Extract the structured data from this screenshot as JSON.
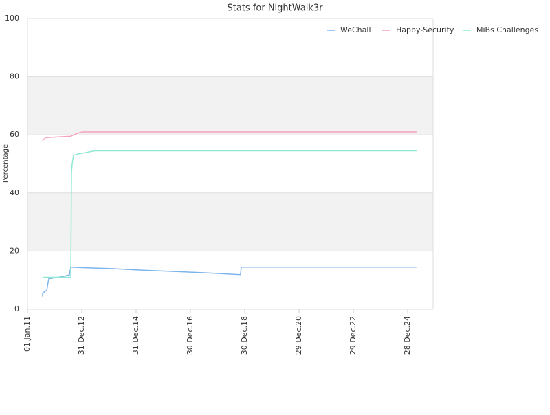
{
  "chart_data": {
    "type": "line",
    "title": "Stats for NightWalk3r",
    "y_label": "Percentage",
    "xlim": [
      "2011-01-01",
      "2025-12-05"
    ],
    "xticks": [
      {
        "value": "2011-01-01",
        "label": "01.Jan.11"
      },
      {
        "value": "2012-12-31",
        "label": "31.Dec.12"
      },
      {
        "value": "2014-12-31",
        "label": "31.Dec.14"
      },
      {
        "value": "2016-12-30",
        "label": "30.Dec.16"
      },
      {
        "value": "2018-12-30",
        "label": "30.Dec.18"
      },
      {
        "value": "2020-12-29",
        "label": "29.Dec.20"
      },
      {
        "value": "2022-12-29",
        "label": "29.Dec.22"
      },
      {
        "value": "2024-12-28",
        "label": "28.Dec.24"
      }
    ],
    "ylim": [
      0,
      100
    ],
    "yticks": [
      0,
      20,
      40,
      60,
      80,
      100
    ],
    "grid": true,
    "alternate_bands": true,
    "legend": "top-right",
    "series": [
      {
        "name": "WeChall",
        "color": "#7cb5ec",
        "x": [
          "2011-07-23",
          "2011-07-23",
          "2011-09-17",
          "2011-10-14",
          "2012-04-07",
          "2012-07-18",
          "2012-08-05",
          "2013-01-09",
          "2014-01-14",
          "2015-01-18",
          "2016-04-24",
          "2017-07-31",
          "2018-11-04",
          "2018-11-14",
          "2025-04-26"
        ],
        "values": [
          4.3,
          5.5,
          6.5,
          10.5,
          11.2,
          11.8,
          14.5,
          14.3,
          14,
          13.5,
          13,
          12.5,
          11.9,
          14.5,
          14.5
        ]
      },
      {
        "name": "Happy-Security",
        "color": "#f4a0bf",
        "x": [
          "2011-07-23",
          "2011-08-29",
          "2012-02-21",
          "2012-08-05",
          "2012-10-27",
          "2013-01-09",
          "2025-04-26"
        ],
        "values": [
          58,
          59,
          59.3,
          59.5,
          60.5,
          61,
          61
        ]
      },
      {
        "name": "MiBs Challenges",
        "color": "#8ee8d3",
        "x": [
          "2011-07-23",
          "2012-08-05",
          "2012-08-14",
          "2012-08-24",
          "2012-09-11",
          "2012-11-25",
          "2013-06-25",
          "2025-04-26"
        ],
        "values": [
          11,
          11,
          47,
          50,
          53,
          53.5,
          54.5,
          54.5
        ]
      }
    ]
  }
}
